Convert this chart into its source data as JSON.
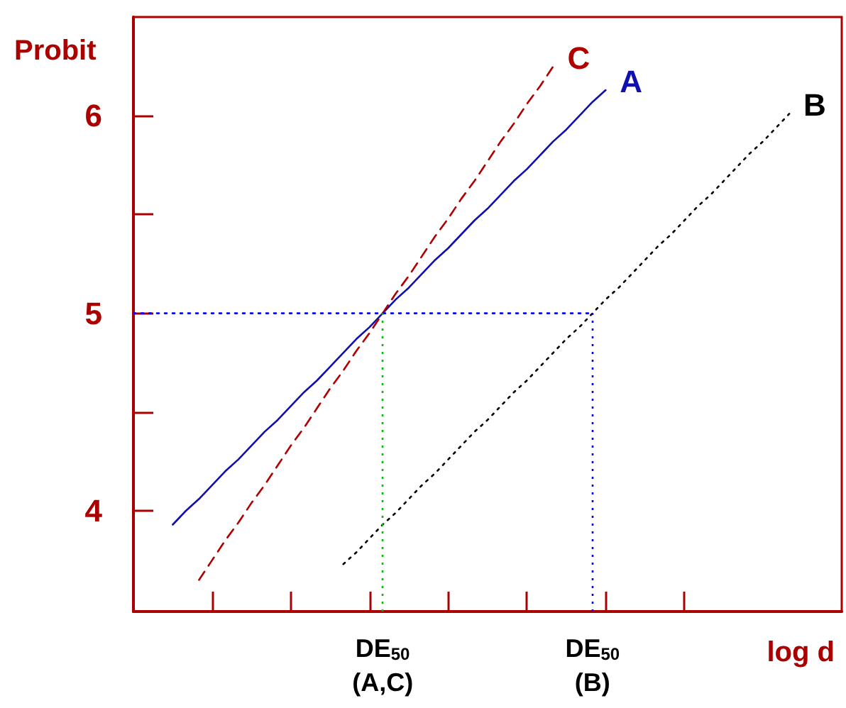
{
  "chart_data": {
    "type": "line",
    "xlabel": "log d",
    "ylabel": "Probit",
    "categories": [
      null,
      null,
      null,
      null,
      null,
      null,
      null,
      null,
      null,
      null,
      null,
      null,
      null,
      null,
      null,
      null,
      null,
      null,
      null,
      null,
      null,
      null,
      null,
      null,
      null,
      null,
      null,
      null,
      null,
      null,
      null,
      null,
      null,
      null,
      null,
      null,
      null,
      null,
      null,
      null,
      null,
      null,
      null,
      null,
      null,
      null,
      null,
      null,
      null,
      null,
      null,
      null,
      null,
      null,
      null
    ],
    "ylim": [
      3.49,
      6.5
    ],
    "yticks": [
      4,
      {
        "value": 4.5,
        "label": null
      },
      5,
      {
        "value": 5.5,
        "label": null
      },
      6
    ],
    "tick_labels": "y",
    "grid": false,
    "legend": false,
    "marker": "none",
    "series": [
      {
        "name": "A",
        "color": "#1010b0",
        "line_style": "solid",
        "values": [
          null,
          null,
          null,
          3.93,
          4.0,
          4.06,
          4.13,
          4.2,
          4.26,
          4.33,
          4.4,
          4.46,
          4.53,
          4.6,
          4.66,
          4.73,
          4.8,
          4.87,
          4.93,
          5.0,
          5.07,
          5.13,
          5.2,
          5.27,
          5.33,
          5.4,
          5.47,
          5.53,
          5.6,
          5.67,
          5.73,
          5.8,
          5.87,
          5.93,
          6.0,
          6.07,
          6.13,
          null,
          null,
          null,
          null,
          null,
          null,
          null,
          null,
          null,
          null,
          null,
          null,
          null,
          null,
          null,
          null,
          null,
          null
        ]
      },
      {
        "name": "B",
        "color": "#000000",
        "line_style": "dotted",
        "values": [
          null,
          null,
          null,
          null,
          null,
          null,
          null,
          null,
          null,
          null,
          null,
          null,
          null,
          null,
          null,
          null,
          3.73,
          3.79,
          3.86,
          3.93,
          3.99,
          4.06,
          4.13,
          4.19,
          4.26,
          4.33,
          4.4,
          4.46,
          4.53,
          4.6,
          4.66,
          4.73,
          4.8,
          4.87,
          4.93,
          5.0,
          5.07,
          5.13,
          5.2,
          5.27,
          5.34,
          5.4,
          5.47,
          5.54,
          5.6,
          5.67,
          5.74,
          5.81,
          5.87,
          5.94,
          6.01,
          null,
          null,
          null,
          null
        ]
      },
      {
        "name": "C",
        "color": "#b00000",
        "line_style": "dashed",
        "values": [
          null,
          null,
          null,
          null,
          null,
          3.65,
          3.75,
          3.85,
          3.94,
          4.04,
          4.13,
          4.23,
          4.33,
          4.42,
          4.52,
          4.62,
          4.71,
          4.81,
          4.9,
          5.0,
          5.1,
          5.19,
          5.29,
          5.39,
          5.48,
          5.58,
          5.67,
          5.77,
          5.87,
          5.96,
          6.06,
          6.15,
          6.25,
          null,
          null,
          null,
          null,
          null,
          null,
          null,
          null,
          null,
          null,
          null,
          null,
          null,
          null,
          null,
          null,
          null,
          null,
          null,
          null,
          null,
          null
        ]
      },
      {
        "color": "#0000ff",
        "line_style": "dotted",
        "values": [
          5,
          5,
          5,
          5,
          5,
          5,
          5,
          5,
          5,
          5,
          5,
          5,
          5,
          5,
          5,
          5,
          5,
          5,
          5,
          5,
          5,
          5,
          5,
          5,
          5,
          5,
          5,
          5,
          5,
          5,
          5,
          5,
          5,
          5,
          5,
          5,
          null,
          null,
          null,
          null,
          null,
          null,
          null,
          null,
          null,
          null,
          null,
          null,
          null,
          null,
          null,
          null,
          null,
          null,
          null
        ]
      }
    ],
    "annotations": [
      "DE$_{50}$\n(A,C)",
      "DE$_{50}$\n(B)"
    ]
  }
}
